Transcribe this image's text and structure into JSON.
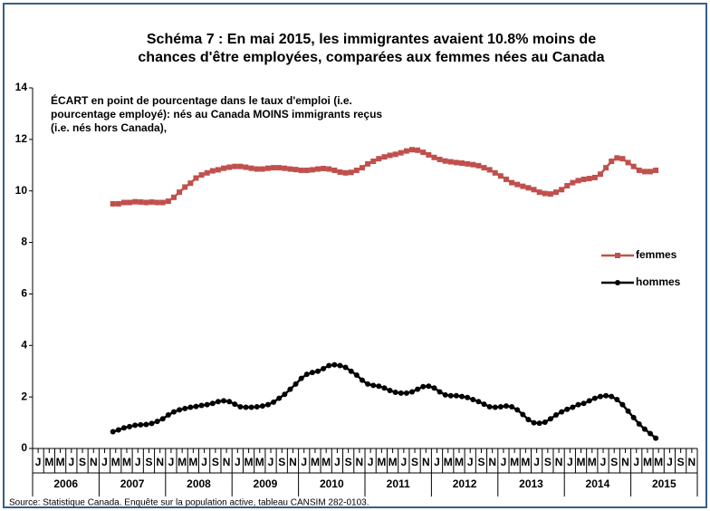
{
  "chart_data": {
    "type": "line",
    "title_lines": [
      "Schéma 7 : En mai 2015, les immigrantes avaient 10.8% moins de",
      "chances d'être employées, comparées aux femmes nées au Canada"
    ],
    "annotation_lines": [
      "ÉCART en point de pourcentage dans le taux d'emploi (i.e.",
      "pourcentage employé): nés au Canada MOINS immigrants reçus",
      "(i.e. nés hors Canada),"
    ],
    "source": "Source: Statistique Canada. Enquête sur la population active, tableau CANSIM  282-0103.",
    "categories": [
      "J",
      null,
      "M",
      null,
      "M",
      null,
      "J",
      null,
      "S",
      null,
      "N",
      null,
      "J",
      null,
      "M",
      null,
      "M",
      null,
      "J",
      null,
      "S",
      null,
      "N",
      null,
      "J",
      null,
      "M",
      null,
      "M",
      null,
      "J",
      null,
      "S",
      null,
      "N",
      null,
      "J",
      null,
      "M",
      null,
      "M",
      null,
      "J",
      null,
      "S",
      null,
      "N",
      null,
      "J",
      null,
      "M",
      null,
      "M",
      null,
      "J",
      null,
      "S",
      null,
      "N",
      null,
      "J",
      null,
      "M",
      null,
      "M",
      null,
      "J",
      null,
      "S",
      null,
      "N",
      null,
      "J",
      null,
      "M",
      null,
      "M",
      null,
      "J",
      null,
      "S",
      null,
      "N",
      null,
      "J",
      null,
      "M",
      null,
      "M",
      null,
      "J",
      null,
      "S",
      null,
      "N",
      null,
      "J",
      null,
      "M",
      null,
      "M",
      null,
      "J",
      null,
      "S",
      null,
      "N",
      null,
      "J",
      null,
      "M",
      null,
      "M",
      null,
      "J",
      null,
      "S",
      null,
      "N",
      null
    ],
    "year_labels": [
      "2006",
      "2007",
      "2008",
      "2009",
      "2010",
      "2011",
      "2012",
      "2013",
      "2014",
      "2015"
    ],
    "ylim": [
      0,
      14
    ],
    "yticks": [
      0,
      2,
      4,
      6,
      8,
      10,
      12,
      14
    ],
    "legend": "right",
    "series": [
      {
        "name": "femmes",
        "color": "#c0504d",
        "marker": "square",
        "values": [
          null,
          null,
          null,
          null,
          null,
          null,
          null,
          null,
          null,
          null,
          null,
          null,
          null,
          null,
          9.5,
          9.5,
          9.55,
          9.55,
          9.58,
          9.57,
          9.55,
          9.57,
          9.55,
          9.55,
          9.6,
          9.75,
          9.95,
          10.15,
          10.3,
          10.5,
          10.62,
          10.7,
          10.78,
          10.82,
          10.88,
          10.92,
          10.95,
          10.95,
          10.92,
          10.88,
          10.85,
          10.85,
          10.88,
          10.9,
          10.9,
          10.88,
          10.85,
          10.83,
          10.8,
          10.8,
          10.82,
          10.85,
          10.87,
          10.85,
          10.8,
          10.73,
          10.7,
          10.72,
          10.8,
          10.9,
          11.05,
          11.15,
          11.25,
          11.32,
          11.38,
          11.42,
          11.48,
          11.55,
          11.6,
          11.58,
          11.5,
          11.4,
          11.3,
          11.22,
          11.16,
          11.13,
          11.1,
          11.08,
          11.05,
          11.02,
          10.98,
          10.9,
          10.82,
          10.7,
          10.58,
          10.45,
          10.32,
          10.25,
          10.18,
          10.12,
          10.05,
          9.95,
          9.9,
          9.88,
          9.95,
          10.05,
          10.2,
          10.32,
          10.4,
          10.45,
          10.48,
          10.52,
          10.65,
          10.9,
          11.15,
          11.28,
          11.25,
          11.1,
          10.95,
          10.8,
          10.75,
          10.75,
          10.8,
          null,
          null,
          null,
          null,
          null,
          null,
          null
        ]
      },
      {
        "name": "hommes",
        "color": "#000000",
        "marker": "circle",
        "values": [
          null,
          null,
          null,
          null,
          null,
          null,
          null,
          null,
          null,
          null,
          null,
          null,
          null,
          null,
          0.65,
          0.72,
          0.8,
          0.85,
          0.9,
          0.92,
          0.93,
          0.97,
          1.05,
          1.15,
          1.3,
          1.42,
          1.5,
          1.55,
          1.6,
          1.63,
          1.67,
          1.7,
          1.75,
          1.82,
          1.85,
          1.82,
          1.72,
          1.62,
          1.6,
          1.6,
          1.62,
          1.65,
          1.7,
          1.8,
          1.95,
          2.1,
          2.3,
          2.5,
          2.72,
          2.88,
          2.95,
          3.0,
          3.1,
          3.22,
          3.25,
          3.22,
          3.15,
          3.0,
          2.85,
          2.65,
          2.5,
          2.45,
          2.42,
          2.35,
          2.25,
          2.18,
          2.15,
          2.15,
          2.2,
          2.3,
          2.4,
          2.42,
          2.35,
          2.2,
          2.08,
          2.05,
          2.05,
          2.02,
          1.98,
          1.9,
          1.82,
          1.72,
          1.62,
          1.6,
          1.62,
          1.65,
          1.62,
          1.5,
          1.32,
          1.12,
          1.0,
          0.98,
          1.02,
          1.15,
          1.3,
          1.42,
          1.52,
          1.6,
          1.7,
          1.75,
          1.85,
          1.95,
          2.02,
          2.05,
          2.02,
          1.9,
          1.7,
          1.45,
          1.2,
          0.95,
          0.75,
          0.58,
          0.4,
          null,
          null,
          null,
          null,
          null,
          null,
          null
        ]
      }
    ]
  }
}
